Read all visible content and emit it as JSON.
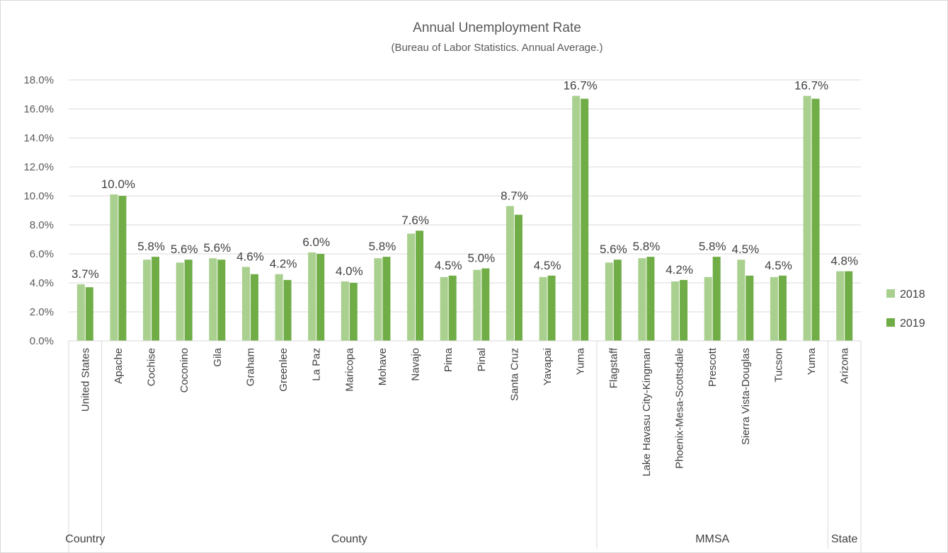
{
  "chart_data": {
    "type": "bar",
    "title": "Annual Unemployment Rate",
    "subtitle": "(Bureau of Labor Statistics. Annual Average.)",
    "xlabel": "",
    "ylabel": "",
    "ylim": [
      0,
      18
    ],
    "yticks": [
      0,
      2,
      4,
      6,
      8,
      10,
      12,
      14,
      16,
      18
    ],
    "ytick_labels": [
      "0.0%",
      "2.0%",
      "4.0%",
      "6.0%",
      "8.0%",
      "10.0%",
      "12.0%",
      "14.0%",
      "16.0%",
      "18.0%"
    ],
    "grid": true,
    "legend_position": "right",
    "categories": [
      "United States",
      "Apache",
      "Cochise",
      "Coconino",
      "Gila",
      "Graham",
      "Greenlee",
      "La Paz",
      "Maricopa",
      "Mohave",
      "Navajo",
      "Pima",
      "Pinal",
      "Santa Cruz",
      "Yavapai",
      "Yuma",
      "Flagstaff",
      "Lake Havasu City-Kingman",
      "Phoenix-Mesa-Scottsdale",
      "Prescott",
      "Sierra Vista-Douglas",
      "Tucson",
      "Yuma",
      "Arizona"
    ],
    "groups": [
      {
        "label": "Country",
        "start": 0,
        "count": 1
      },
      {
        "label": "County",
        "start": 1,
        "count": 15
      },
      {
        "label": "MMSA",
        "start": 16,
        "count": 7
      },
      {
        "label": "State",
        "start": 23,
        "count": 1
      }
    ],
    "series": [
      {
        "name": "2018",
        "color": "#a9d08e",
        "values": [
          3.9,
          10.1,
          5.6,
          5.4,
          5.7,
          5.1,
          4.6,
          6.1,
          4.1,
          5.7,
          7.4,
          4.4,
          4.9,
          9.3,
          4.4,
          16.9,
          5.4,
          5.7,
          4.1,
          4.4,
          5.6,
          4.4,
          16.9,
          4.8
        ]
      },
      {
        "name": "2019",
        "color": "#70ad47",
        "values": [
          3.7,
          10.0,
          5.8,
          5.6,
          5.6,
          4.6,
          4.2,
          6.0,
          4.0,
          5.8,
          7.6,
          4.5,
          5.0,
          8.7,
          4.5,
          16.7,
          5.6,
          5.8,
          4.2,
          5.8,
          4.5,
          4.5,
          16.7,
          4.8
        ]
      }
    ],
    "data_labels": [
      "3.7%",
      "10.0%",
      "5.8%",
      "5.6%",
      "5.6%",
      "4.6%",
      "4.2%",
      "6.0%",
      "4.0%",
      "5.8%",
      "7.6%",
      "4.5%",
      "5.0%",
      "8.7%",
      "4.5%",
      "16.7%",
      "5.6%",
      "5.8%",
      "4.2%",
      "5.8%",
      "4.5%",
      "4.5%",
      "16.7%",
      "4.8%"
    ]
  },
  "colors": {
    "series_2018": "#a9d08e",
    "series_2019": "#70ad47",
    "gridline": "#d9d9d9",
    "text": "#595959"
  }
}
